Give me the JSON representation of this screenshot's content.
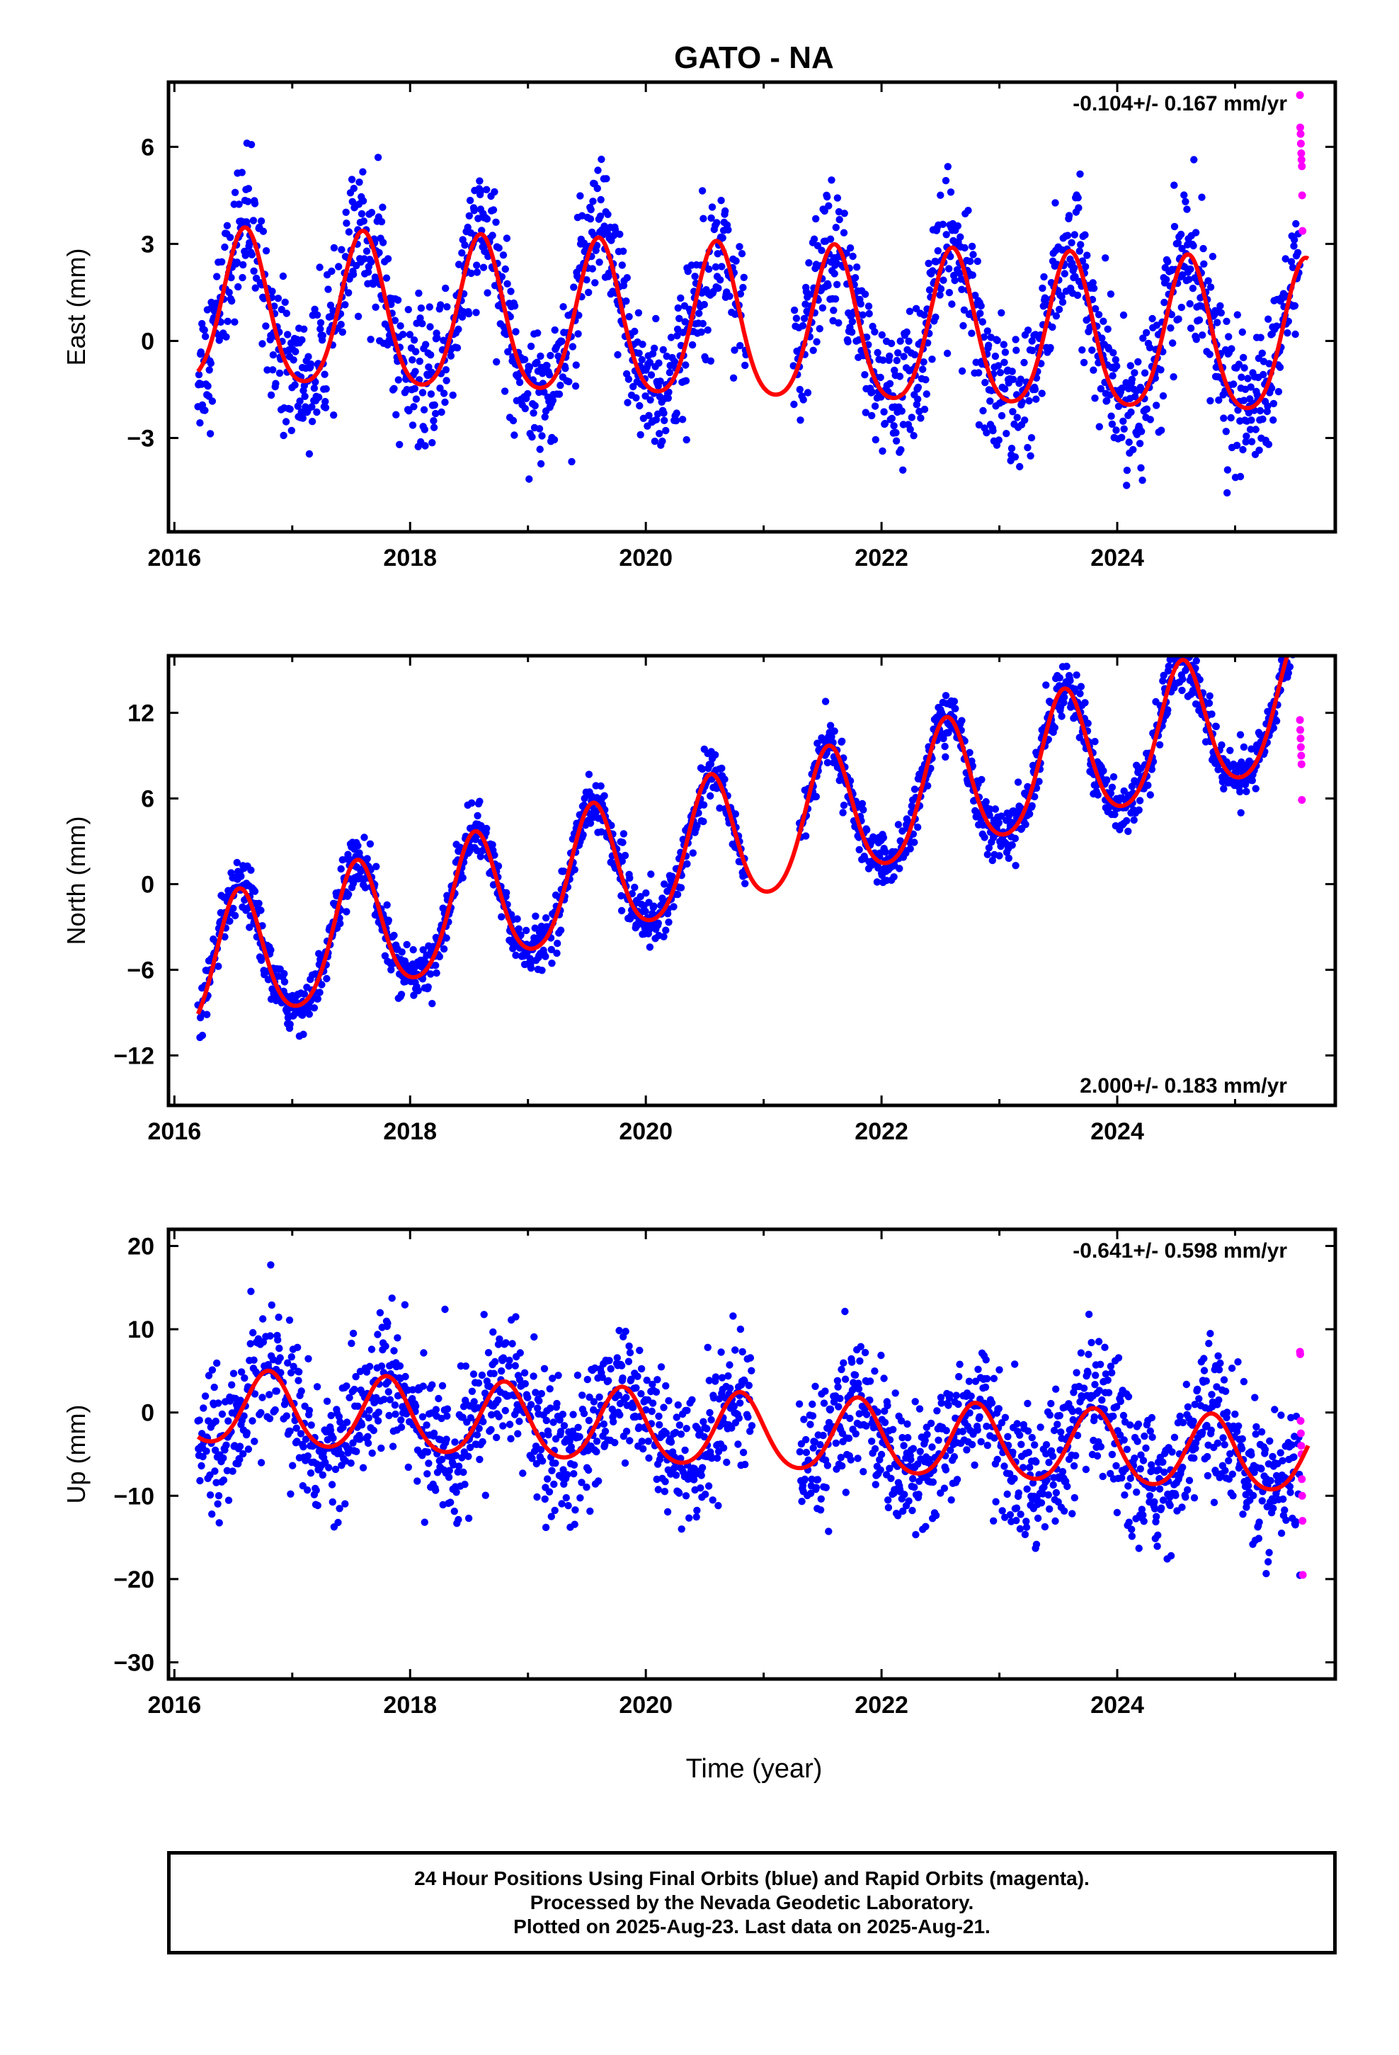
{
  "title": "GATO - NA",
  "xlabel": "Time (year)",
  "footer": {
    "line1": "24 Hour Positions Using Final Orbits (blue) and Rapid Orbits (magenta).",
    "line2": "Processed by the Nevada Geodetic Laboratory.",
    "line3": "Plotted on 2025-Aug-23. Last data on 2025-Aug-21."
  },
  "colors": {
    "final": "#0000ff",
    "rapid": "#ff00ff",
    "model": "#ff0000",
    "axes": "#000000"
  },
  "chart_data": [
    {
      "type": "scatter",
      "component": "East",
      "ylabel": "East (mm)",
      "rate_label": "-0.104+/- 0.167 mm/yr",
      "rate_position": "top-right",
      "xlim": [
        2015.95,
        2025.85
      ],
      "ylim": [
        -5.9,
        8.0
      ],
      "xticks": [
        2016,
        2018,
        2020,
        2022,
        2024
      ],
      "yticks": [
        -3,
        0,
        3,
        6
      ],
      "ytick_labels": [
        "−3",
        "0",
        "3",
        "6"
      ],
      "model": {
        "trend": 0.0,
        "offset": 0.85,
        "rate": -0.104,
        "amp": 2.35,
        "phase_year": 2016.6,
        "semiannual": 0.35
      },
      "noise": 1.05,
      "gaps": [
        [
          2020.85,
          2021.25
        ]
      ],
      "rapid_y": [
        7.6,
        6.6,
        6.4,
        6.1,
        5.8,
        5.6,
        5.4,
        4.5,
        3.4
      ]
    },
    {
      "type": "scatter",
      "component": "North",
      "ylabel": "North (mm)",
      "rate_label": "2.000+/- 0.183 mm/yr",
      "rate_position": "bottom-right",
      "xlim": [
        2015.95,
        2025.85
      ],
      "ylim": [
        -15.5,
        16.0
      ],
      "xticks": [
        2016,
        2018,
        2020,
        2022,
        2024
      ],
      "yticks": [
        -12,
        -6,
        0,
        6,
        12
      ],
      "ytick_labels": [
        "−12",
        "−6",
        "0",
        "6",
        "12"
      ],
      "model": {
        "trend": 2.0,
        "offset": -6.2,
        "rate": 2.0,
        "amp": 4.6,
        "phase_year": 2016.55,
        "semiannual": 0.6
      },
      "noise": 0.9,
      "gaps": [
        [
          2020.85,
          2021.3
        ]
      ],
      "rapid_y": [
        11.5,
        10.8,
        10.2,
        9.6,
        9.0,
        8.4,
        5.9
      ]
    },
    {
      "type": "scatter",
      "component": "Up",
      "ylabel": "Up (mm)",
      "rate_label": "-0.641+/- 0.598 mm/yr",
      "rate_position": "top-right",
      "xlim": [
        2015.95,
        2025.85
      ],
      "ylim": [
        -32.0,
        22.0
      ],
      "xticks": [
        2016,
        2018,
        2020,
        2022,
        2024
      ],
      "yticks": [
        -30,
        -20,
        -10,
        0,
        10,
        20
      ],
      "ytick_labels": [
        "−30",
        "−20",
        "−10",
        "0",
        "10",
        "20"
      ],
      "model": {
        "trend": -0.641,
        "offset": 0.5,
        "rate": -0.641,
        "amp": 4.4,
        "phase_year": 2016.8,
        "semiannual": 0.5
      },
      "noise": 4.0,
      "gaps": [
        [
          2020.9,
          2021.3
        ]
      ],
      "rapid_y": [
        7.3,
        7.0,
        -1.0,
        -2.5,
        -4.0,
        -5.0,
        -8.0,
        -10.0,
        -13.0,
        -19.5
      ]
    }
  ]
}
